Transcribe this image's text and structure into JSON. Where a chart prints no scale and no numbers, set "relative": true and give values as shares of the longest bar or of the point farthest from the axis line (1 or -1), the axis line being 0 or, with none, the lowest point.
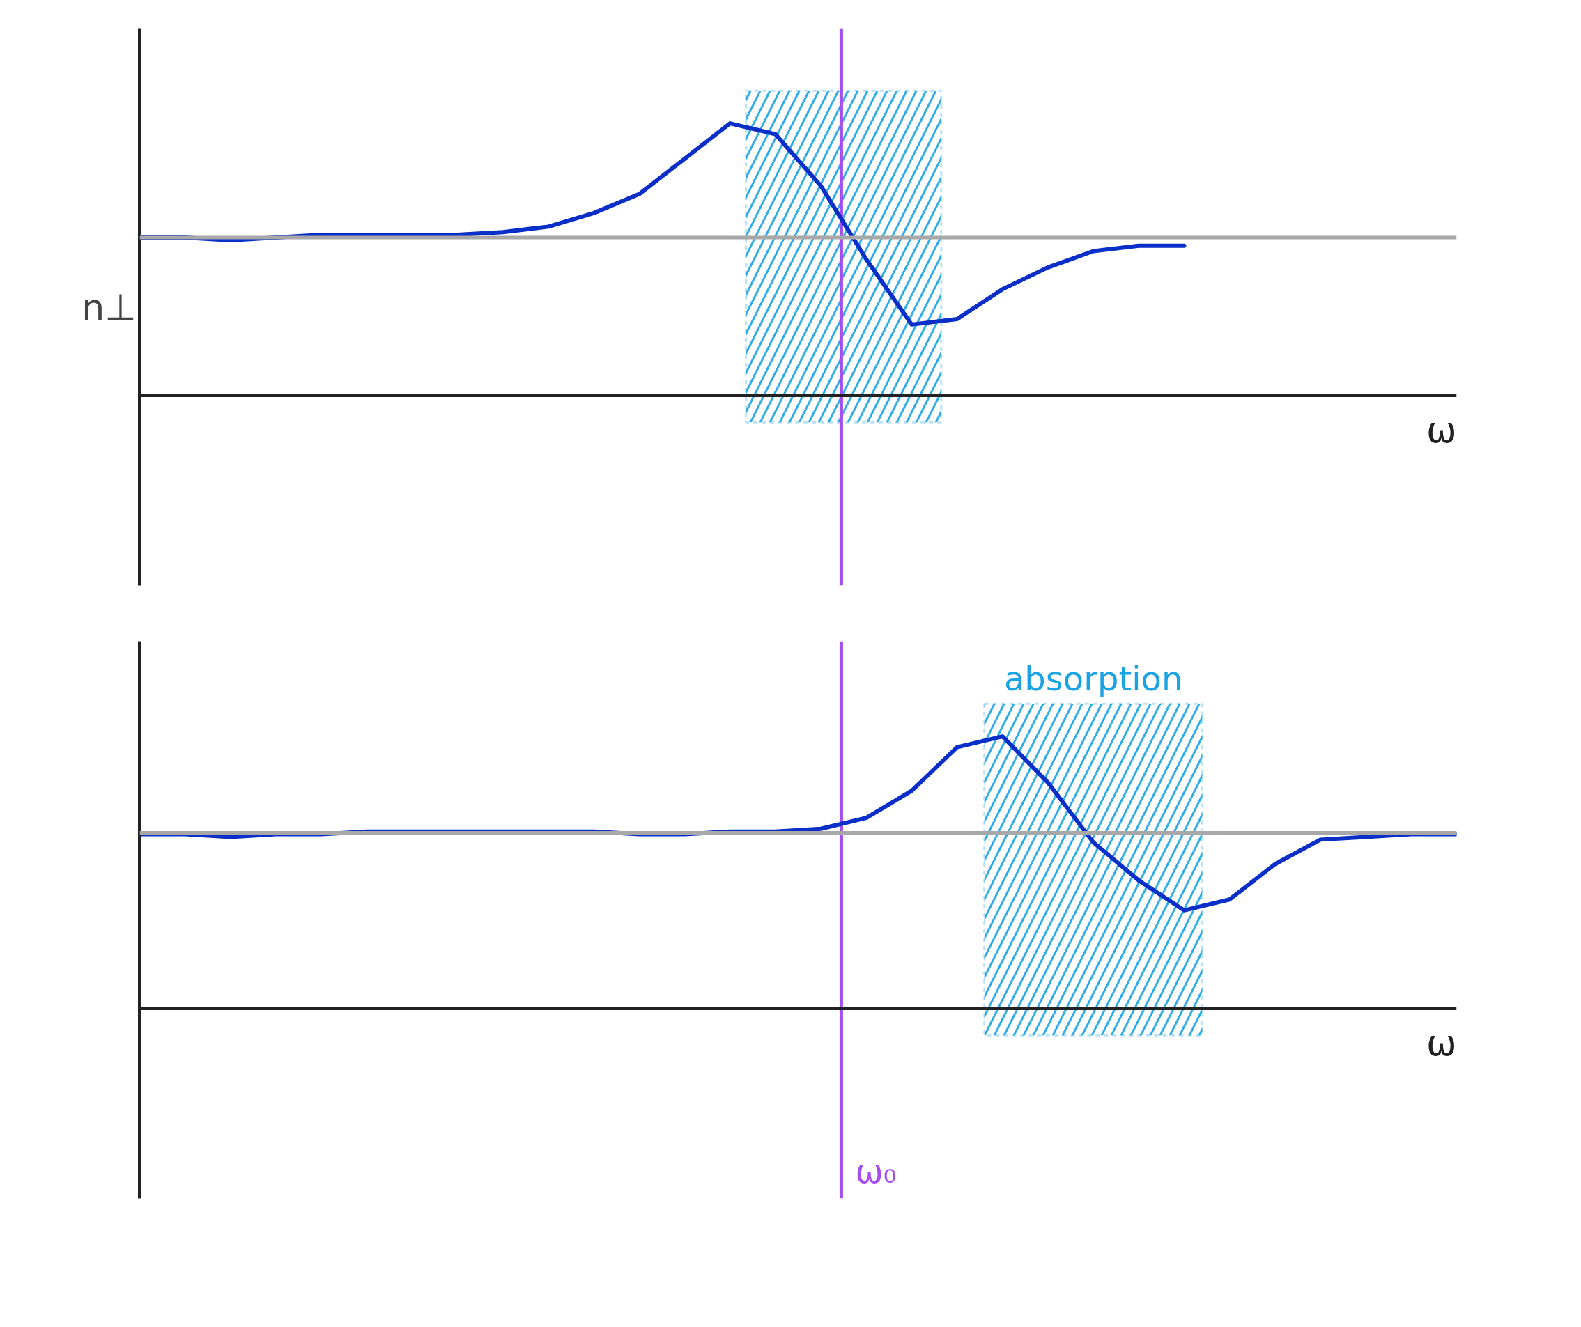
{
  "chart_data": [
    {
      "type": "line",
      "ylabel": "n⊥",
      "xlabel": "ω",
      "relative": true,
      "categories": [
        null,
        null,
        null,
        null,
        null,
        null,
        null,
        null,
        null,
        null,
        null,
        null,
        null,
        null,
        null,
        null,
        null,
        null,
        null,
        null,
        null,
        null,
        null,
        null,
        null,
        null,
        null,
        null,
        null,
        null
      ],
      "series": [
        {
          "color": "#0a2fc8",
          "values": [
            0.58,
            0.58,
            0.57,
            0.58,
            0.59,
            0.59,
            0.59,
            0.59,
            0.6,
            0.62,
            0.67,
            0.74,
            0.87,
            1,
            0.96,
            0.77,
            0.5,
            0.26,
            0.28,
            0.39,
            0.47,
            0.53,
            0.55,
            0.55,
            null,
            null,
            null,
            null,
            null,
            null
          ]
        }
      ],
      "ref_lines": [
        {
          "axis": "y",
          "value": 0.58,
          "color": "#a8a8a8",
          "line_style": "solid"
        }
      ]
    },
    {
      "type": "line",
      "xlabel": "ω",
      "relative": true,
      "categories": [
        null,
        null,
        null,
        null,
        null,
        null,
        null,
        null,
        null,
        null,
        null,
        null,
        null,
        null,
        null,
        null,
        null,
        null,
        null,
        null,
        null,
        null,
        null,
        null,
        null,
        null,
        null,
        null,
        null,
        null
      ],
      "series": [
        {
          "color": "#0a2fc8",
          "values": [
            0.64,
            0.64,
            0.63,
            0.64,
            0.64,
            0.65,
            0.65,
            0.65,
            0.65,
            0.65,
            0.65,
            0.64,
            0.64,
            0.65,
            0.65,
            0.66,
            0.7,
            0.8,
            0.96,
            1,
            0.83,
            0.61,
            0.47,
            0.36,
            0.4,
            0.53,
            0.62,
            0.63,
            0.64,
            0.64
          ]
        }
      ],
      "ref_lines": [
        {
          "axis": "y",
          "value": 0.645,
          "color": "#a8a8a8",
          "line_style": "solid"
        }
      ],
      "annotations": [
        "absorption",
        "ω₀"
      ]
    }
  ]
}
